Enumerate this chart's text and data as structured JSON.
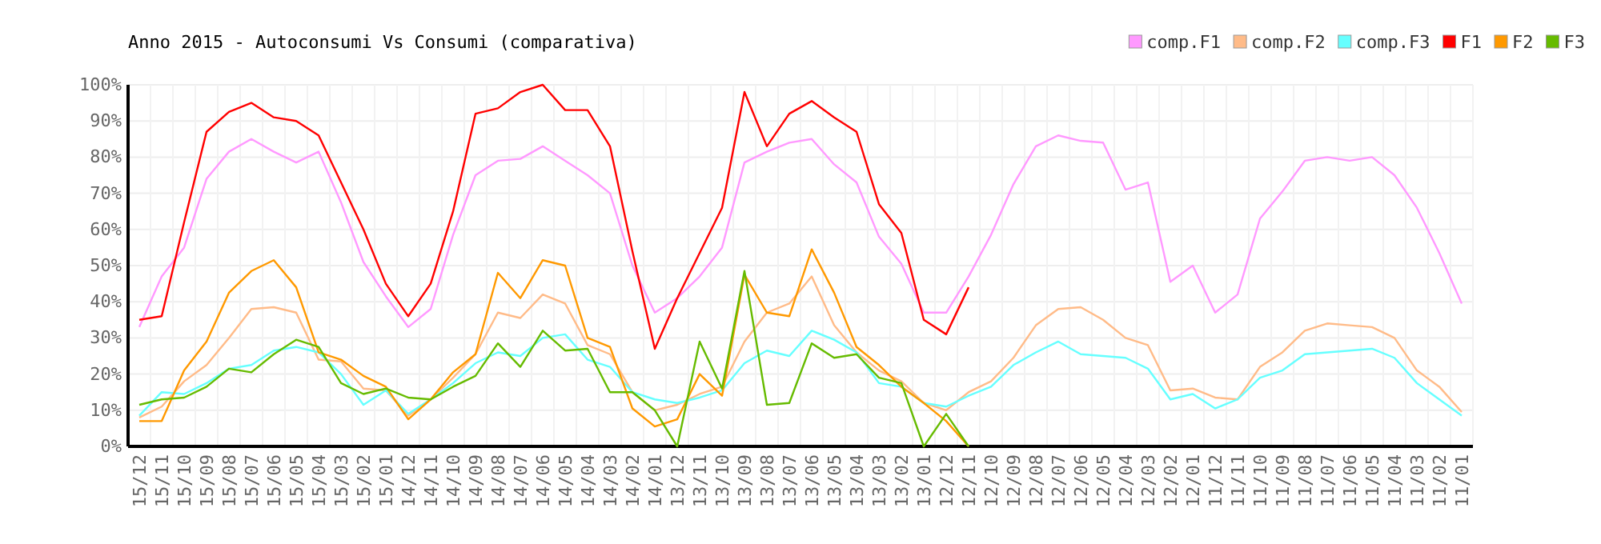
{
  "chart_data": {
    "type": "line",
    "title": "Anno 2015 - Autoconsumi Vs Consumi (comparativa)",
    "categories": [
      "15/12",
      "15/11",
      "15/10",
      "15/09",
      "15/08",
      "15/07",
      "15/06",
      "15/05",
      "15/04",
      "15/03",
      "15/02",
      "15/01",
      "14/12",
      "14/11",
      "14/10",
      "14/09",
      "14/08",
      "14/07",
      "14/06",
      "14/05",
      "14/04",
      "14/03",
      "14/02",
      "14/01",
      "13/12",
      "13/11",
      "13/10",
      "13/09",
      "13/08",
      "13/07",
      "13/06",
      "13/05",
      "13/04",
      "13/03",
      "13/02",
      "13/01",
      "12/12",
      "12/11",
      "12/10",
      "12/09",
      "12/08",
      "12/07",
      "12/06",
      "12/05",
      "12/04",
      "12/03",
      "12/02",
      "12/01",
      "11/12",
      "11/11",
      "11/10",
      "11/09",
      "11/08",
      "11/07",
      "11/06",
      "11/05",
      "11/04",
      "11/03",
      "11/02",
      "11/01"
    ],
    "series": [
      {
        "name": "comp.F1",
        "color": "#ff99ff",
        "values": [
          33,
          47,
          55,
          74,
          81.5,
          85,
          81.5,
          78.5,
          81.5,
          67.5,
          51,
          41.5,
          33,
          38,
          58.5,
          75,
          79,
          79.5,
          83,
          79,
          75,
          70,
          50,
          37,
          41,
          47,
          55,
          78.5,
          81.5,
          84,
          85,
          78,
          73,
          58,
          50.5,
          37,
          37,
          47,
          58.5,
          72.5,
          83,
          86,
          84.5,
          84,
          71,
          73,
          45.5,
          50,
          37,
          42,
          63,
          70.5,
          79,
          80,
          79,
          80,
          75,
          66,
          53.5,
          39.5
        ]
      },
      {
        "name": "comp.F2",
        "color": "#ffbb88",
        "values": [
          8,
          11,
          18,
          22.5,
          30,
          38,
          38.5,
          37,
          24,
          23.5,
          16,
          15.5,
          8.5,
          13,
          19,
          25.5,
          37,
          35.5,
          42,
          39.5,
          28,
          25.5,
          15,
          10,
          11.5,
          14.5,
          16.5,
          29,
          37,
          39.5,
          47,
          33.5,
          26,
          21,
          18,
          12,
          10,
          15,
          18,
          24.5,
          33.5,
          38,
          38.5,
          35,
          30,
          28,
          15.5,
          16,
          13.5,
          13,
          22,
          26,
          32,
          34,
          33.5,
          33,
          30,
          21,
          16.5,
          9.5
        ]
      },
      {
        "name": "comp.F3",
        "color": "#66ffff",
        "values": [
          8.5,
          15,
          14.5,
          17.5,
          21.5,
          22.5,
          26.5,
          27.5,
          26,
          20,
          11.5,
          15.5,
          9,
          13,
          17.5,
          23,
          26,
          25,
          30,
          31,
          24,
          22,
          15,
          13,
          12,
          13.5,
          15.5,
          23,
          26.5,
          25,
          32,
          29.5,
          26,
          17.5,
          16.5,
          12,
          11,
          14,
          16.5,
          22.5,
          26,
          29,
          25.5,
          25,
          24.5,
          21.5,
          13,
          14.5,
          10.5,
          13,
          19,
          21,
          25.5,
          26,
          26.5,
          27,
          24.5,
          17.5,
          13,
          8.5
        ]
      },
      {
        "name": "F1",
        "color": "#ff0000",
        "values": [
          35,
          36,
          62,
          87,
          92.5,
          95,
          91,
          90,
          86,
          73,
          60,
          45,
          36,
          45,
          65,
          92,
          93.5,
          98,
          100,
          93,
          93,
          83,
          54,
          27,
          41,
          53.5,
          66,
          98,
          83,
          92,
          95.5,
          91,
          87,
          67,
          59,
          35,
          31,
          44,
          null,
          null,
          null,
          null,
          null,
          null,
          null,
          null,
          null,
          null,
          null,
          null,
          null,
          null,
          null,
          null,
          null,
          null,
          null,
          null,
          null,
          null
        ]
      },
      {
        "name": "F2",
        "color": "#ff9900",
        "values": [
          7,
          7,
          21,
          29,
          42.5,
          48.5,
          51.5,
          44,
          26,
          24,
          19.5,
          16.5,
          7.5,
          13,
          20.5,
          25.5,
          48,
          41,
          51.5,
          50,
          30,
          27.5,
          10.5,
          5.5,
          7.5,
          20,
          14,
          47.5,
          37,
          36,
          54.5,
          42.5,
          27.5,
          22.5,
          16.5,
          12,
          7,
          0,
          null,
          null,
          null,
          null,
          null,
          null,
          null,
          null,
          null,
          null,
          null,
          null,
          null,
          null,
          null,
          null,
          null,
          null,
          null,
          null,
          null,
          null
        ]
      },
      {
        "name": "F3",
        "color": "#66bb00",
        "values": [
          11.5,
          13,
          13.5,
          16.5,
          21.5,
          20.5,
          25.5,
          29.5,
          27.5,
          17.5,
          14.5,
          16,
          13.5,
          13,
          16.5,
          19.5,
          28.5,
          22,
          32,
          26.5,
          27,
          15,
          15,
          10,
          0,
          29,
          16,
          48.5,
          11.5,
          12,
          28.5,
          24.5,
          25.5,
          19,
          17.5,
          0,
          9,
          0,
          null,
          null,
          null,
          null,
          null,
          null,
          null,
          null,
          null,
          null,
          null,
          null,
          null,
          null,
          null,
          null,
          null,
          null,
          null,
          null,
          null,
          null
        ]
      }
    ],
    "ylim": [
      0,
      100
    ],
    "yticks": [
      {
        "value": 0,
        "label": "0%"
      },
      {
        "value": 10,
        "label": "10%"
      },
      {
        "value": 20,
        "label": "20%"
      },
      {
        "value": 30,
        "label": "30%"
      },
      {
        "value": 40,
        "label": "40%"
      },
      {
        "value": 50,
        "label": "50%"
      },
      {
        "value": 60,
        "label": "60%"
      },
      {
        "value": 70,
        "label": "70%"
      },
      {
        "value": 80,
        "label": "80%"
      },
      {
        "value": 90,
        "label": "90%"
      },
      {
        "value": 100,
        "label": "100%"
      }
    ],
    "grid": true,
    "legend": "top right",
    "marker": "none",
    "line_style": "solid"
  }
}
